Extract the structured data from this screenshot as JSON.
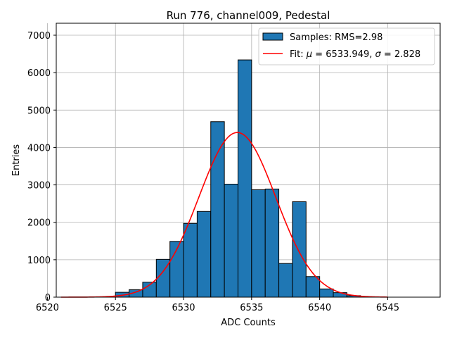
{
  "chart_data": {
    "type": "bar",
    "title": "Run 776, channel009, Pedestal",
    "xlabel": "ADC Counts",
    "ylabel": "Entries",
    "xlim": [
      6520.65,
      6548.85
    ],
    "ylim": [
      0,
      7320
    ],
    "xticks": [
      6520,
      6525,
      6530,
      6535,
      6540,
      6545
    ],
    "yticks": [
      0,
      1000,
      2000,
      3000,
      4000,
      5000,
      6000,
      7000
    ],
    "grid": true,
    "legend_position": "top-right",
    "histogram": {
      "name": "Samples: RMS=2.98",
      "color": "#1f77b4",
      "edgecolor": "#000000",
      "bins": [
        {
          "x0": 6525.0,
          "x1": 6526.0,
          "value": 130
        },
        {
          "x0": 6526.0,
          "x1": 6527.0,
          "value": 200
        },
        {
          "x0": 6527.0,
          "x1": 6528.0,
          "value": 400
        },
        {
          "x0": 6528.0,
          "x1": 6529.0,
          "value": 1010
        },
        {
          "x0": 6529.0,
          "x1": 6530.0,
          "value": 1490
        },
        {
          "x0": 6530.0,
          "x1": 6531.0,
          "value": 1970
        },
        {
          "x0": 6531.0,
          "x1": 6532.0,
          "value": 2290
        },
        {
          "x0": 6532.0,
          "x1": 6533.0,
          "value": 4690
        },
        {
          "x0": 6533.0,
          "x1": 6534.0,
          "value": 3020
        },
        {
          "x0": 6534.0,
          "x1": 6535.0,
          "value": 6340
        },
        {
          "x0": 6535.0,
          "x1": 6536.0,
          "value": 2870
        },
        {
          "x0": 6536.0,
          "x1": 6537.0,
          "value": 2890
        },
        {
          "x0": 6537.0,
          "x1": 6538.0,
          "value": 900
        },
        {
          "x0": 6538.0,
          "x1": 6539.0,
          "value": 2550
        },
        {
          "x0": 6539.0,
          "x1": 6540.0,
          "value": 550
        },
        {
          "x0": 6540.0,
          "x1": 6541.0,
          "value": 220
        },
        {
          "x0": 6541.0,
          "x1": 6542.0,
          "value": 120
        },
        {
          "x0": 6542.0,
          "x1": 6543.0,
          "value": 40
        }
      ]
    },
    "fit": {
      "name": "Fit: μ = 6533.949, σ = 2.828",
      "name_parts": {
        "prefix": "Fit: ",
        "mu_symbol": "μ",
        "mu_part": " = 6533.949, ",
        "sigma_symbol": "σ",
        "sigma_part": " = 2.828"
      },
      "color": "#ff0000",
      "type": "gaussian",
      "mu": 6533.949,
      "sigma": 2.828,
      "amplitude": 4400,
      "x_range": [
        6521,
        6545
      ]
    }
  }
}
